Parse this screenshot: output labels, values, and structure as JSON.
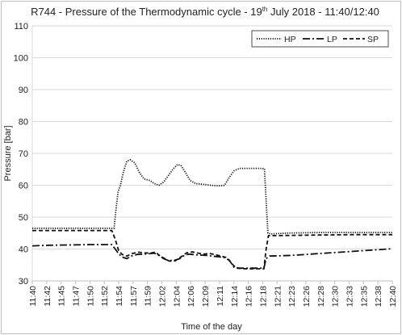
{
  "chart_data": {
    "type": "line",
    "title_main": "R744 - Pressure of the Thermodynamic cycle - 19",
    "title_sup": "th",
    "title_tail": " July 2018 - 11:40/12:40",
    "xlabel": "Time of the day",
    "ylabel": "Pressure [bar]",
    "ylim": [
      30,
      110
    ],
    "yticks": [
      30,
      40,
      50,
      60,
      70,
      80,
      90,
      100,
      110
    ],
    "xlim": [
      0,
      60
    ],
    "xticks": [
      {
        "v": 0,
        "label": "11:40"
      },
      {
        "v": 2.5,
        "label": "11:42"
      },
      {
        "v": 5,
        "label": "11:45"
      },
      {
        "v": 7.5,
        "label": "11:47"
      },
      {
        "v": 10,
        "label": "11:50"
      },
      {
        "v": 12.5,
        "label": "11:52"
      },
      {
        "v": 15,
        "label": "11:54"
      },
      {
        "v": 17.5,
        "label": "11:57"
      },
      {
        "v": 20,
        "label": "11:59"
      },
      {
        "v": 22.5,
        "label": "12:02"
      },
      {
        "v": 25,
        "label": "12:04"
      },
      {
        "v": 27.5,
        "label": "12:06"
      },
      {
        "v": 30,
        "label": "12:09"
      },
      {
        "v": 32.5,
        "label": "12:11"
      },
      {
        "v": 35,
        "label": "12:14"
      },
      {
        "v": 37.5,
        "label": "12:16"
      },
      {
        "v": 40,
        "label": "12:18"
      },
      {
        "v": 42.5,
        "label": "12:21"
      },
      {
        "v": 45,
        "label": "12:23"
      },
      {
        "v": 47.5,
        "label": "12:26"
      },
      {
        "v": 50,
        "label": "12:28"
      },
      {
        "v": 52.5,
        "label": "12:30"
      },
      {
        "v": 55,
        "label": "12:33"
      },
      {
        "v": 57.5,
        "label": "12:35"
      },
      {
        "v": 60,
        "label": "12:38"
      },
      {
        "v": 62.5,
        "label": "12:40"
      }
    ],
    "grid": "horizontal",
    "legend_position": "top-right",
    "series": [
      {
        "name": "HP",
        "style": "dotted",
        "points": [
          [
            0,
            46.5
          ],
          [
            5,
            46.5
          ],
          [
            10,
            46.5
          ],
          [
            14.2,
            46.5
          ],
          [
            14.5,
            52
          ],
          [
            14.9,
            58
          ],
          [
            15.3,
            60
          ],
          [
            15.8,
            64
          ],
          [
            16.4,
            67.5
          ],
          [
            17.0,
            68
          ],
          [
            17.8,
            67
          ],
          [
            18.6,
            64
          ],
          [
            19.4,
            62
          ],
          [
            20.4,
            61.5
          ],
          [
            21.2,
            60.5
          ],
          [
            22.0,
            60
          ],
          [
            22.8,
            61
          ],
          [
            23.6,
            63
          ],
          [
            24.4,
            65
          ],
          [
            25.2,
            66.5
          ],
          [
            25.8,
            66.2
          ],
          [
            26.6,
            64
          ],
          [
            27.4,
            61.5
          ],
          [
            28.4,
            60.5
          ],
          [
            29.6,
            60.3
          ],
          [
            31,
            60
          ],
          [
            32.4,
            59.8
          ],
          [
            33.4,
            60
          ],
          [
            34.2,
            62.5
          ],
          [
            35.0,
            64.5
          ],
          [
            36.0,
            65.3
          ],
          [
            37.5,
            65.3
          ],
          [
            38.6,
            65.3
          ],
          [
            39.8,
            65.3
          ],
          [
            40.3,
            65.2
          ],
          [
            40.6,
            55
          ],
          [
            40.9,
            45
          ],
          [
            41.4,
            44.7
          ],
          [
            44,
            45
          ],
          [
            50,
            45.2
          ],
          [
            56,
            45.2
          ],
          [
            62.5,
            45.2
          ]
        ]
      },
      {
        "name": "LP",
        "style": "dash-dot",
        "points": [
          [
            0,
            41
          ],
          [
            3,
            41.2
          ],
          [
            7,
            41.3
          ],
          [
            10,
            41.4
          ],
          [
            13.8,
            41.4
          ],
          [
            14.4,
            40
          ],
          [
            15.0,
            38.5
          ],
          [
            15.6,
            37.5
          ],
          [
            16.4,
            37
          ],
          [
            17.2,
            37.8
          ],
          [
            18.2,
            38.3
          ],
          [
            19.2,
            38.4
          ],
          [
            20.2,
            38.5
          ],
          [
            21.2,
            38.7
          ],
          [
            22.0,
            38
          ],
          [
            22.8,
            37
          ],
          [
            23.6,
            36.4
          ],
          [
            24.6,
            36.4
          ],
          [
            25.6,
            37
          ],
          [
            26.4,
            38
          ],
          [
            27.2,
            38.4
          ],
          [
            28.2,
            38.2
          ],
          [
            29.2,
            38.1
          ],
          [
            30.2,
            38
          ],
          [
            31.2,
            37.8
          ],
          [
            32.2,
            37.6
          ],
          [
            33.2,
            37.4
          ],
          [
            34.2,
            36.5
          ],
          [
            35.0,
            34.3
          ],
          [
            36.0,
            34
          ],
          [
            38,
            34
          ],
          [
            40.2,
            34
          ],
          [
            40.6,
            37
          ],
          [
            41.2,
            37.8
          ],
          [
            45,
            38
          ],
          [
            50,
            38.6
          ],
          [
            55,
            39.2
          ],
          [
            60,
            39.8
          ],
          [
            62.5,
            40.1
          ]
        ]
      },
      {
        "name": "SP",
        "style": "dashed",
        "points": [
          [
            0,
            45.8
          ],
          [
            5,
            45.8
          ],
          [
            10,
            45.8
          ],
          [
            13.8,
            45.8
          ],
          [
            14.4,
            43
          ],
          [
            15.0,
            39.5
          ],
          [
            15.6,
            38.3
          ],
          [
            16.4,
            37.8
          ],
          [
            17.4,
            38.6
          ],
          [
            18.4,
            39
          ],
          [
            19.4,
            38.8
          ],
          [
            20.4,
            38.7
          ],
          [
            21.4,
            39
          ],
          [
            22.2,
            37.8
          ],
          [
            23.0,
            37
          ],
          [
            23.8,
            36.2
          ],
          [
            24.8,
            36.3
          ],
          [
            25.8,
            37.5
          ],
          [
            26.8,
            38.8
          ],
          [
            27.8,
            39.1
          ],
          [
            28.8,
            38.7
          ],
          [
            29.8,
            38.4
          ],
          [
            30.8,
            38.6
          ],
          [
            31.8,
            38.2
          ],
          [
            32.8,
            37.8
          ],
          [
            33.8,
            37.3
          ],
          [
            34.6,
            35.5
          ],
          [
            35.4,
            34
          ],
          [
            37,
            33.8
          ],
          [
            39,
            33.8
          ],
          [
            40.2,
            33.8
          ],
          [
            40.6,
            40
          ],
          [
            41.0,
            44.2
          ],
          [
            42,
            44.2
          ],
          [
            50,
            44.4
          ],
          [
            56,
            44.5
          ],
          [
            62.5,
            44.5
          ]
        ]
      }
    ]
  }
}
